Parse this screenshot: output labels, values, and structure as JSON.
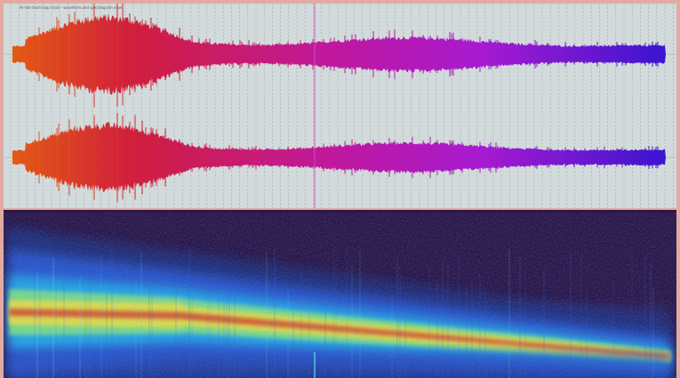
{
  "caption": "Hi-hat drum loop track - waveform and spectrogram view",
  "colors": {
    "frame": "#e2aba1",
    "waveform_bg": "#d3dadb",
    "spectrogram_bg": "#2d1746",
    "gradient_start": "#e35a14",
    "gradient_mid1": "#d01e3c",
    "gradient_mid2": "#c0189c",
    "gradient_mid3": "#a61ad0",
    "gradient_end": "#3b14d0"
  },
  "icons": {
    "waveform": "waveform-icon",
    "spectrogram": "spectrogram-icon"
  }
}
